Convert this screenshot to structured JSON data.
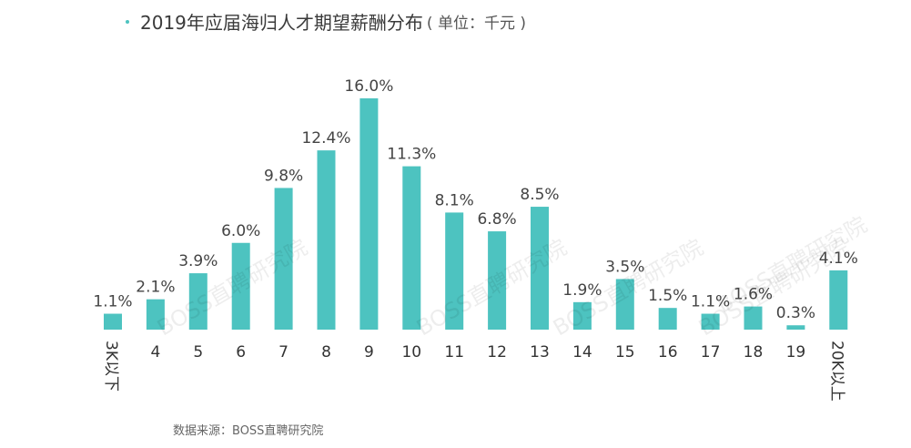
{
  "title": {
    "text": "2019年应届海归人才期望薪酬分布",
    "unit": "( 单位：千元 )"
  },
  "source": "数据来源：BOSS直聘研究院",
  "watermark": "BOSS直聘研究院",
  "colors": {
    "bar": "#4dc3c0",
    "dot": "#4dc3c0",
    "label": "#444444"
  },
  "chart_data": {
    "type": "bar",
    "title": "2019年应届海归人才期望薪酬分布",
    "unit": "千元",
    "categories": [
      "3K以下",
      "4",
      "5",
      "6",
      "7",
      "8",
      "9",
      "10",
      "11",
      "12",
      "13",
      "14",
      "15",
      "16",
      "17",
      "18",
      "19",
      "20K以上"
    ],
    "values": [
      1.1,
      2.1,
      3.9,
      6.0,
      9.8,
      12.4,
      16.0,
      11.3,
      8.1,
      6.8,
      8.5,
      1.9,
      3.5,
      1.5,
      1.1,
      1.6,
      0.3,
      4.1
    ],
    "value_labels": [
      "1.1%",
      "2.1%",
      "3.9%",
      "6.0%",
      "9.8%",
      "12.4%",
      "16.0%",
      "11.3%",
      "8.1%",
      "6.8%",
      "8.5%",
      "1.9%",
      "3.5%",
      "1.5%",
      "1.1%",
      "1.6%",
      "0.3%",
      "4.1%"
    ],
    "ylim": [
      0,
      16
    ],
    "grid": false,
    "legend": "none"
  }
}
